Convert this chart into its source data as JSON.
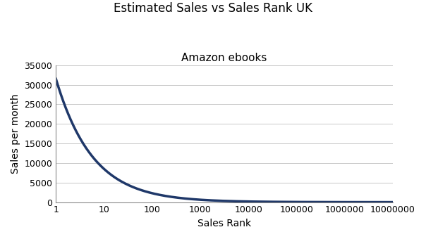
{
  "title": "Estimated Sales vs Sales Rank UK",
  "subtitle": "Amazon ebooks",
  "xlabel": "Sales Rank",
  "ylabel": "Sales per month",
  "line_color": "#1F3869",
  "line_width": 2.5,
  "x_min": 1,
  "x_max": 10000000,
  "y_min": 0,
  "y_max": 35000,
  "y_ticks": [
    0,
    5000,
    10000,
    15000,
    20000,
    25000,
    30000,
    35000
  ],
  "y_tick_labels": [
    "0",
    "5000",
    "10000",
    "15000",
    "20000",
    "25000",
    "30000",
    "35000"
  ],
  "x_ticks": [
    1,
    10,
    100,
    1000,
    10000,
    100000,
    1000000,
    10000000
  ],
  "x_tick_labels": [
    "1",
    "10",
    "100",
    "1000",
    "10000",
    "100000",
    "1000000",
    "10000000"
  ],
  "coefficient": 31500,
  "exponent": -0.57,
  "background_color": "#ffffff",
  "grid_color": "#c8c8c8",
  "title_fontsize": 12,
  "subtitle_fontsize": 11,
  "axis_label_fontsize": 10,
  "tick_fontsize": 9
}
